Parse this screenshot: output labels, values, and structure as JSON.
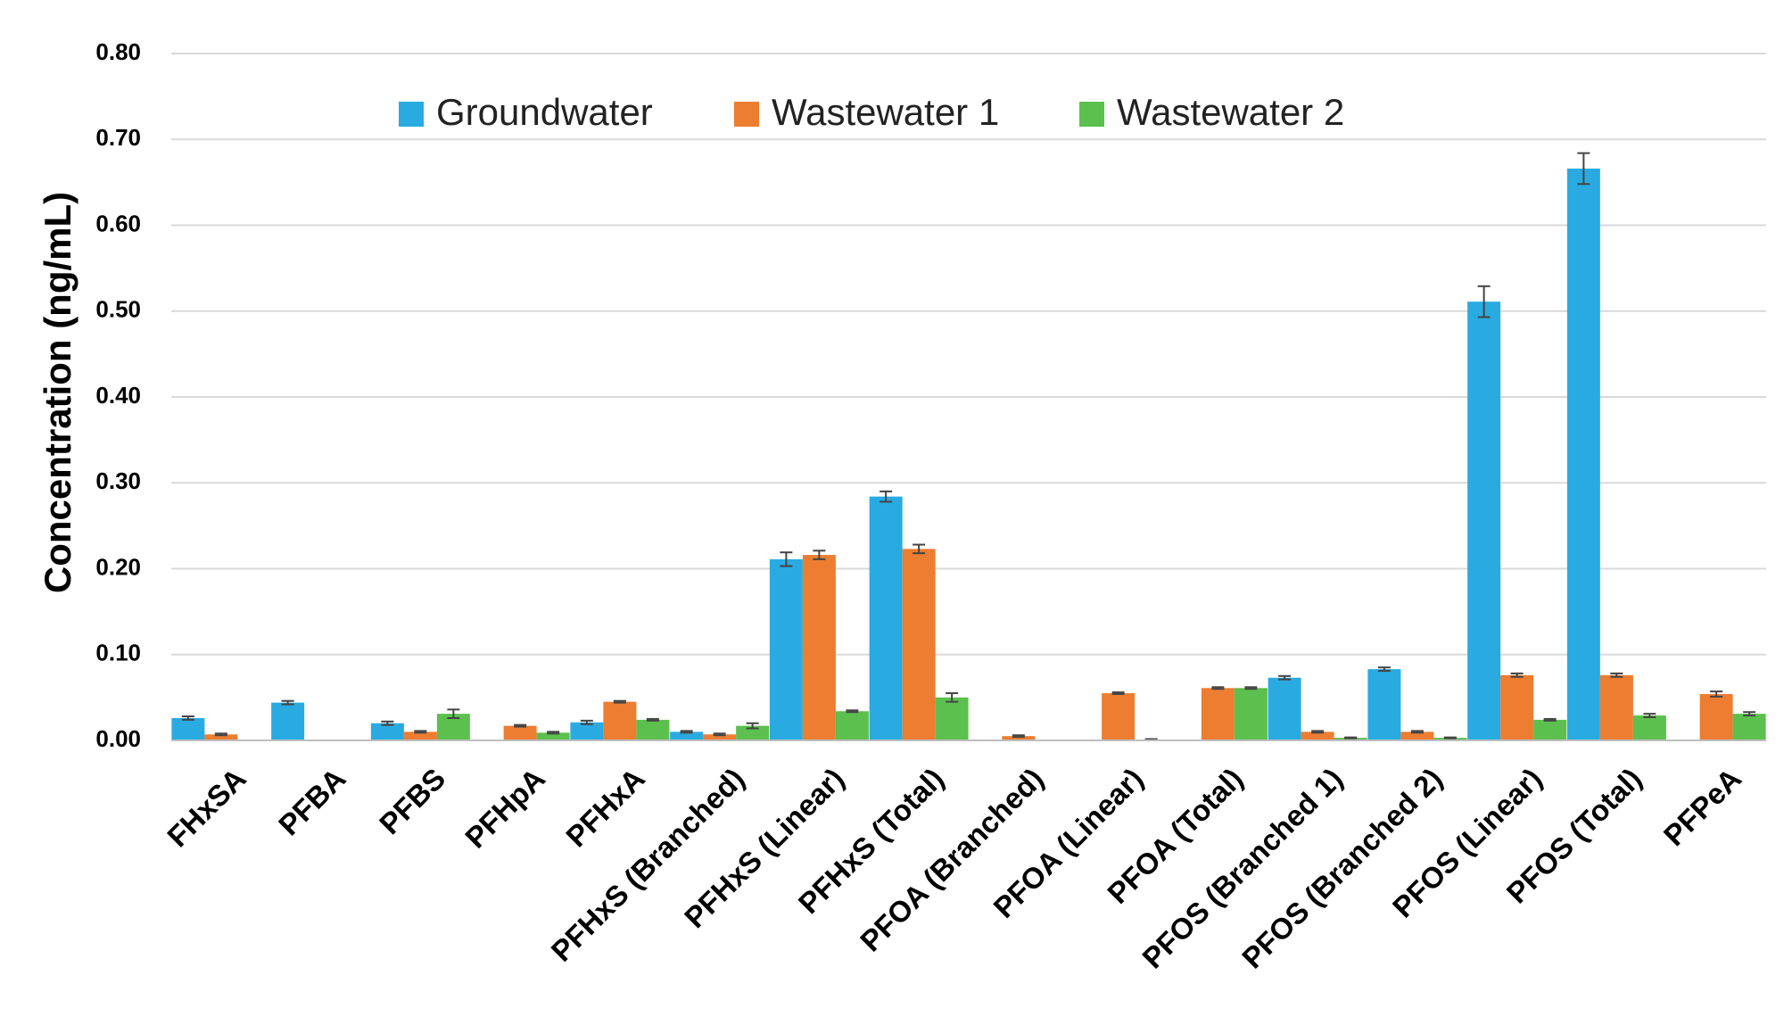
{
  "chart_data": {
    "type": "bar",
    "title": "",
    "xlabel": "",
    "ylabel": "Concentration (ng/mL)",
    "ylim": [
      0,
      0.8
    ],
    "yticks": [
      "0.00",
      "0.10",
      "0.20",
      "0.30",
      "0.40",
      "0.50",
      "0.60",
      "0.70",
      "0.80"
    ],
    "grid": true,
    "legend_position": "top",
    "categories": [
      "FHxSA",
      "PFBA",
      "PFBS",
      "PFHpA",
      "PFHxA",
      "PFHxS (Branched)",
      "PFHxS (Linear)",
      "PFHxS (Total)",
      "PFOA (Branched)",
      "PFOA (Linear)",
      "PFOA (Total)",
      "PFOS (Branched 1)",
      "PFOS (Branched 2)",
      "PFOS (Linear)",
      "PFOS (Total)",
      "PFPeA"
    ],
    "series": [
      {
        "name": "Groundwater",
        "color": "#29abe2",
        "values": [
          0.026,
          0.044,
          0.02,
          null,
          0.021,
          0.01,
          0.211,
          0.284,
          null,
          null,
          null,
          0.073,
          0.083,
          0.511,
          0.666,
          null
        ],
        "errors": [
          0.002,
          0.002,
          0.002,
          null,
          0.002,
          0.001,
          0.008,
          0.006,
          null,
          null,
          null,
          0.002,
          0.002,
          0.018,
          0.018,
          null
        ]
      },
      {
        "name": "Wastewater 1",
        "color": "#ed7d31",
        "values": [
          0.007,
          null,
          0.01,
          0.017,
          0.045,
          0.007,
          0.216,
          0.223,
          0.005,
          0.055,
          0.061,
          0.01,
          0.01,
          0.076,
          0.076,
          0.054
        ],
        "errors": [
          0.001,
          null,
          0.001,
          0.001,
          0.001,
          0.001,
          0.005,
          0.005,
          0.001,
          0.001,
          0.001,
          0.001,
          0.001,
          0.002,
          0.002,
          0.003
        ]
      },
      {
        "name": "Wastewater 2",
        "color": "#5cc04e",
        "values": [
          null,
          null,
          0.031,
          0.009,
          0.024,
          0.017,
          0.034,
          0.05,
          null,
          0.001,
          0.061,
          0.003,
          0.003,
          0.024,
          0.029,
          0.031
        ],
        "errors": [
          null,
          null,
          0.005,
          0.001,
          0.001,
          0.003,
          0.001,
          0.005,
          null,
          0.0005,
          0.001,
          0.0005,
          0.0005,
          0.001,
          0.002,
          0.002
        ]
      }
    ]
  }
}
